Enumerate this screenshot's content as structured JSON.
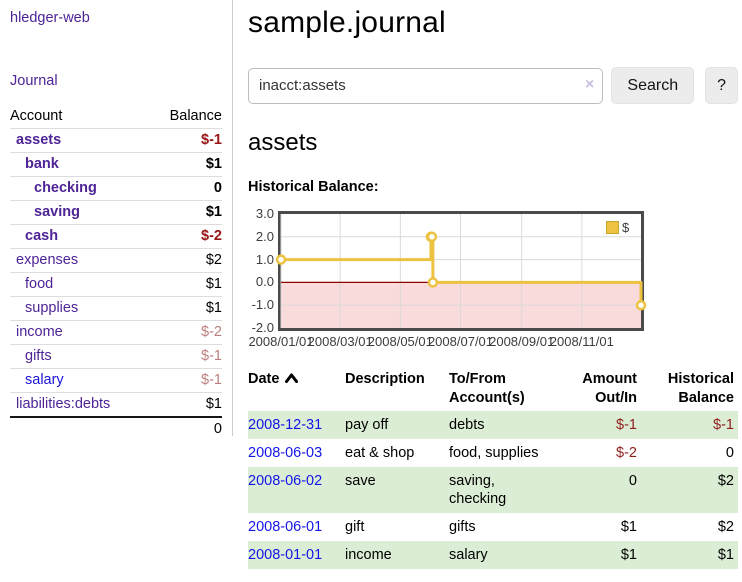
{
  "app": {
    "brand": "hledger-web",
    "nav_journal": "Journal"
  },
  "colors": {
    "link_purple": "#4e2496",
    "link_blue": "#1515e8",
    "negative_strong": "#971414",
    "negative_soft": "#bb7e7e",
    "row_stripe_green": "#dcedd5",
    "chart_line_gold": "#edc240",
    "chart_negative_pink": "#fadbdb",
    "chart_zero_line": "#8b0000"
  },
  "sidebar": {
    "header": {
      "account": "Account",
      "balance": "Balance"
    },
    "accounts": [
      {
        "name": "assets",
        "depth": 1,
        "emph": true,
        "balance": "$-1",
        "neg": "strong",
        "link": "visited"
      },
      {
        "name": "bank",
        "depth": 2,
        "emph": true,
        "balance": "$1",
        "neg": null,
        "link": "visited"
      },
      {
        "name": "checking",
        "depth": 3,
        "emph": true,
        "balance": "0",
        "neg": null,
        "link": "visited"
      },
      {
        "name": "saving",
        "depth": 3,
        "emph": true,
        "balance": "$1",
        "neg": null,
        "link": "visited"
      },
      {
        "name": "cash",
        "depth": 2,
        "emph": true,
        "balance": "$-2",
        "neg": "strong",
        "link": "visited"
      },
      {
        "name": "expenses",
        "depth": 1,
        "emph": false,
        "balance": "$2",
        "neg": null,
        "link": "visited"
      },
      {
        "name": "food",
        "depth": 2,
        "emph": false,
        "balance": "$1",
        "neg": null,
        "link": "visited"
      },
      {
        "name": "supplies",
        "depth": 2,
        "emph": false,
        "balance": "$1",
        "neg": null,
        "link": "visited"
      },
      {
        "name": "income",
        "depth": 1,
        "emph": false,
        "balance": "$-2",
        "neg": "soft",
        "link": "visited"
      },
      {
        "name": "gifts",
        "depth": 2,
        "emph": false,
        "balance": "$-1",
        "neg": "soft",
        "link": "visited"
      },
      {
        "name": "salary",
        "depth": 2,
        "emph": false,
        "balance": "$-1",
        "neg": "soft",
        "link": "new"
      },
      {
        "name": "liabilities:debts",
        "depth": 1,
        "emph": false,
        "balance": "$1",
        "neg": null,
        "link": "visited"
      }
    ],
    "total": "0"
  },
  "header": {
    "title": "sample.journal"
  },
  "search": {
    "value": "inacct:assets",
    "clear_icon": "×",
    "button": "Search",
    "help_button": "?"
  },
  "account_page": {
    "title": "assets",
    "chart_label": "Historical Balance:"
  },
  "chart_data": {
    "type": "line",
    "step": true,
    "title": "Historical Balance:",
    "series": [
      {
        "name": "$",
        "color": "#edc240",
        "points": [
          [
            "2008/01/01",
            1
          ],
          [
            "2008/06/01",
            2
          ],
          [
            "2008/06/02",
            2
          ],
          [
            "2008/06/03",
            0
          ],
          [
            "2008/12/31",
            -1
          ]
        ]
      }
    ],
    "x_range": [
      "2008/01/01",
      "2008/12/31"
    ],
    "x_ticks": [
      "2008/01/01",
      "2008/03/01",
      "2008/05/01",
      "2008/07/01",
      "2008/09/01",
      "2008/11/01"
    ],
    "y_ticks": [
      "3.0",
      "2.0",
      "1.0",
      "0.0",
      "-1.0",
      "-2.0"
    ],
    "ylim": [
      -2,
      3
    ],
    "grid": true,
    "legend_position": "top-right",
    "negative_region_color": "#fadbdb",
    "zero_line_color": "#8b0000",
    "grid_color": "#d9d9d9",
    "border_color": "#4a4a4a"
  },
  "register": {
    "columns": [
      {
        "lines": [
          "Date"
        ],
        "sort": "asc",
        "align": "left"
      },
      {
        "lines": [
          "Description"
        ],
        "align": "left"
      },
      {
        "lines": [
          "To/From",
          "Account(s)"
        ],
        "align": "left"
      },
      {
        "lines": [
          "Amount",
          "Out/In"
        ],
        "align": "right"
      },
      {
        "lines": [
          "Historical",
          "Balance"
        ],
        "align": "right"
      }
    ],
    "rows": [
      {
        "date": "2008-12-31",
        "description": "pay off",
        "accounts": "debts",
        "amount": "$-1",
        "balance": "$-1"
      },
      {
        "date": "2008-06-03",
        "description": "eat & shop",
        "accounts": "food, supplies",
        "amount": "$-2",
        "balance": "0"
      },
      {
        "date": "2008-06-02",
        "description": "save",
        "accounts": "saving, checking",
        "amount": "0",
        "balance": "$2"
      },
      {
        "date": "2008-06-01",
        "description": "gift",
        "accounts": "gifts",
        "amount": "$1",
        "balance": "$2"
      },
      {
        "date": "2008-01-01",
        "description": "income",
        "accounts": "salary",
        "amount": "$1",
        "balance": "$1"
      }
    ]
  }
}
